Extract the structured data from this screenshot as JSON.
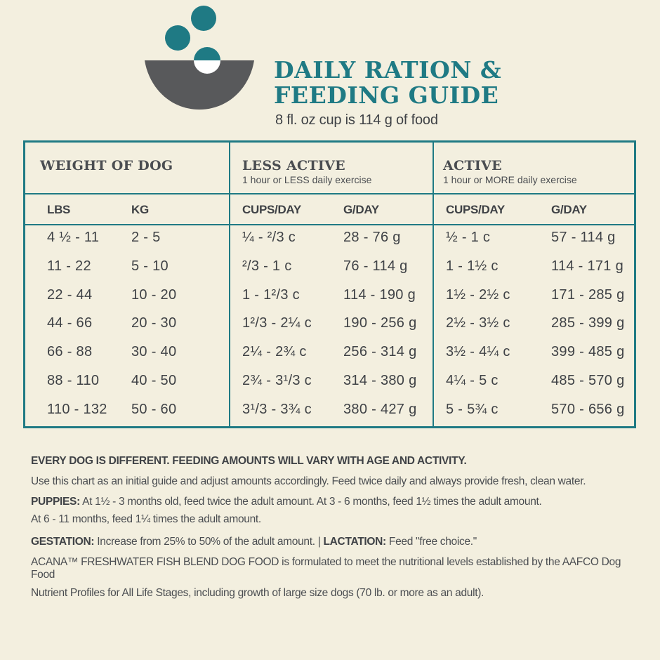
{
  "colors": {
    "teal": "#1f7a84",
    "bowl": "#58595b",
    "background": "#f3efdf",
    "text": "#3f4246"
  },
  "icon": "bowl-with-kibble-icon",
  "header": {
    "title_line1": "DAILY RATION &",
    "title_line2": "FEEDING GUIDE",
    "subtitle": "8 fl. oz cup is 114 g of food"
  },
  "table": {
    "groups": [
      {
        "title": "WEIGHT OF DOG",
        "subtitle": ""
      },
      {
        "title": "LESS ACTIVE",
        "subtitle": "1 hour or LESS daily exercise"
      },
      {
        "title": "ACTIVE",
        "subtitle": "1 hour or MORE daily exercise"
      }
    ],
    "columns": [
      "LBS",
      "KG",
      "CUPS/DAY",
      "G/DAY",
      "CUPS/DAY",
      "G/DAY"
    ],
    "rows": [
      [
        "4 ½ - 11",
        "2 - 5",
        "¼ - ²/3 c",
        "28 - 76 g",
        "½ - 1 c",
        "57 - 114 g"
      ],
      [
        "11 - 22",
        "5 - 10",
        "²/3 - 1 c",
        "76 - 114 g",
        "1 - 1½ c",
        "114 - 171 g"
      ],
      [
        "22 - 44",
        "10 - 20",
        "1 - 1²/3 c",
        "114 - 190 g",
        "1½ - 2½ c",
        "171 - 285 g"
      ],
      [
        "44 - 66",
        "20 - 30",
        "1²/3 - 2¼ c",
        "190 - 256 g",
        "2½ - 3½ c",
        "285 - 399 g"
      ],
      [
        "66 - 88",
        "30 - 40",
        "2¼ - 2¾ c",
        "256 - 314 g",
        "3½ - 4¼ c",
        "399 - 485 g"
      ],
      [
        "88 - 110",
        "40 - 50",
        "2¾ - 3¹/3 c",
        "314 - 380 g",
        "4¼ - 5 c",
        "485 - 570 g"
      ],
      [
        "110 - 132",
        "50 - 60",
        "3¹/3 - 3¾ c",
        "380 - 427 g",
        "5 - 5¾ c",
        "570 - 656 g"
      ]
    ]
  },
  "notes": {
    "heading": "EVERY DOG IS DIFFERENT. FEEDING AMOUNTS WILL VARY WITH AGE AND ACTIVITY.",
    "intro": "Use this chart as an initial guide and adjust amounts accordingly. Feed twice daily and always provide fresh, clean water.",
    "puppies_label": "PUPPIES:",
    "puppies_text": " At 1½ - 3 months old, feed twice the adult amount. At 3 - 6 months, feed 1½ times the adult amount.",
    "puppies_text2": "At 6 - 11 months, feed 1¼ times the adult amount.",
    "gestation_label": "GESTATION:",
    "gestation_text": " Increase from 25% to 50% of the adult amount. | ",
    "lactation_label": "LACTATION:",
    "lactation_text": " Feed \"free choice.\"",
    "aafco_line1": "ACANA™ FRESHWATER FISH BLEND DOG FOOD is formulated to meet the nutritional levels established by the AAFCO Dog Food",
    "aafco_line2": "Nutrient Profiles for All Life Stages, including growth of large size dogs (70 lb. or more as an adult)."
  }
}
